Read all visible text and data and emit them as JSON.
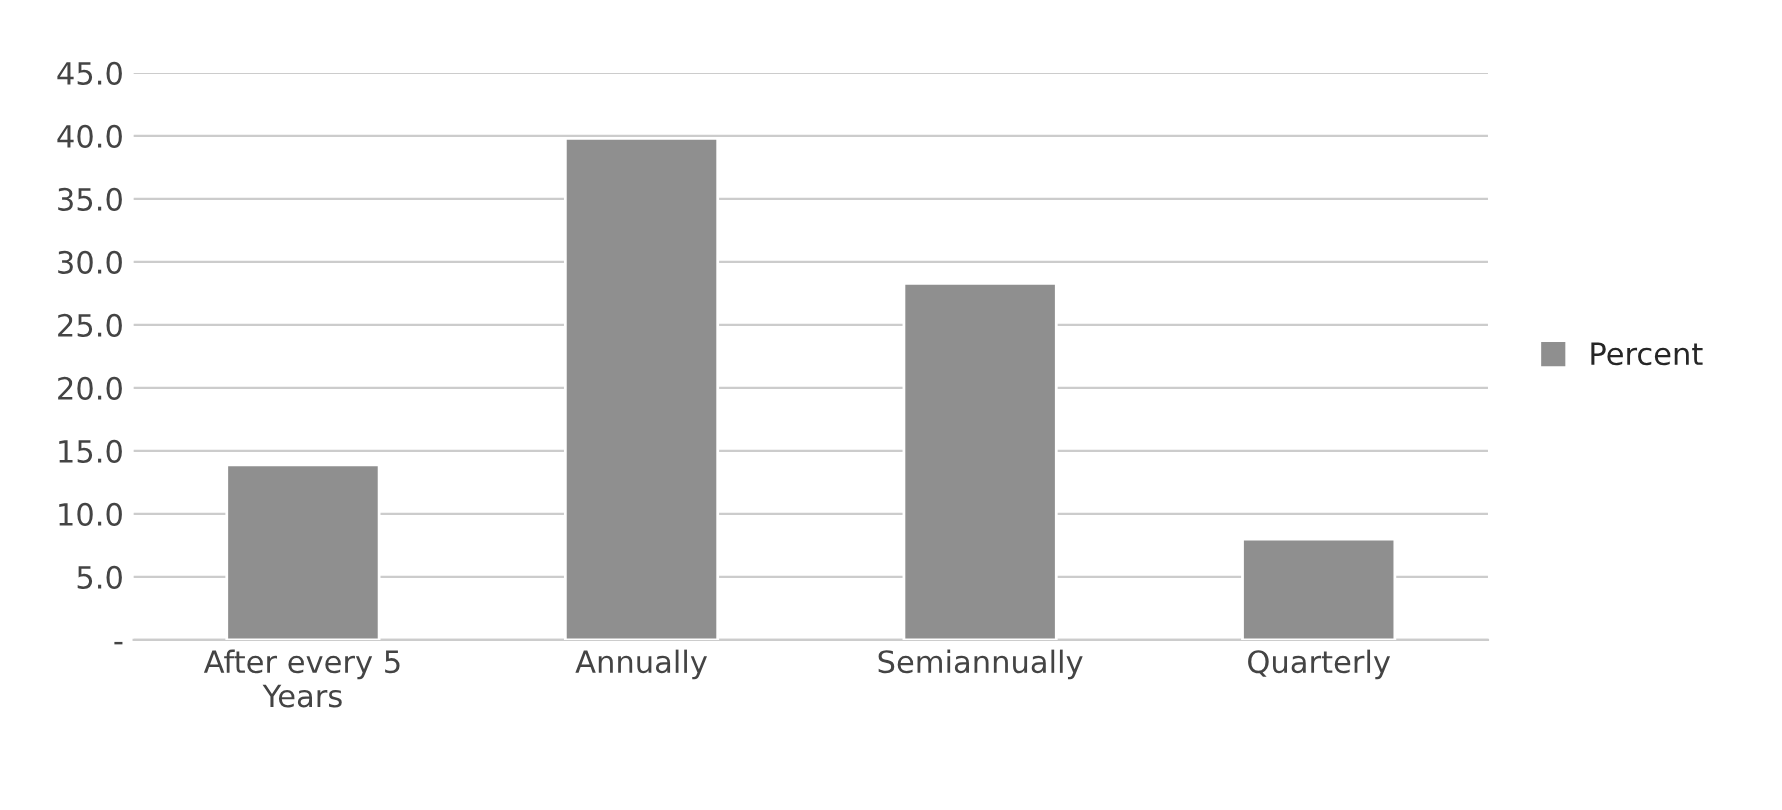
{
  "chart_data": {
    "type": "bar",
    "categories": [
      "After every 5\nYears",
      "Annually",
      "Semiannually",
      "Quarterly"
    ],
    "series": [
      {
        "name": "Percent",
        "color": "#8f8f8f",
        "values": [
          13.9,
          39.8,
          28.3,
          8.0
        ]
      }
    ],
    "ylim": [
      0,
      45
    ],
    "yticks": [
      {
        "value": 0,
        "label": "-"
      },
      {
        "value": 5,
        "label": "5.0"
      },
      {
        "value": 10,
        "label": "10.0"
      },
      {
        "value": 15,
        "label": "15.0"
      },
      {
        "value": 20,
        "label": "20.0"
      },
      {
        "value": 25,
        "label": "25.0"
      },
      {
        "value": 30,
        "label": "30.0"
      },
      {
        "value": 35,
        "label": "35.0"
      },
      {
        "value": 40,
        "label": "40.0"
      },
      {
        "value": 45,
        "label": "45.0"
      }
    ],
    "grid": "y",
    "legend": "right"
  }
}
